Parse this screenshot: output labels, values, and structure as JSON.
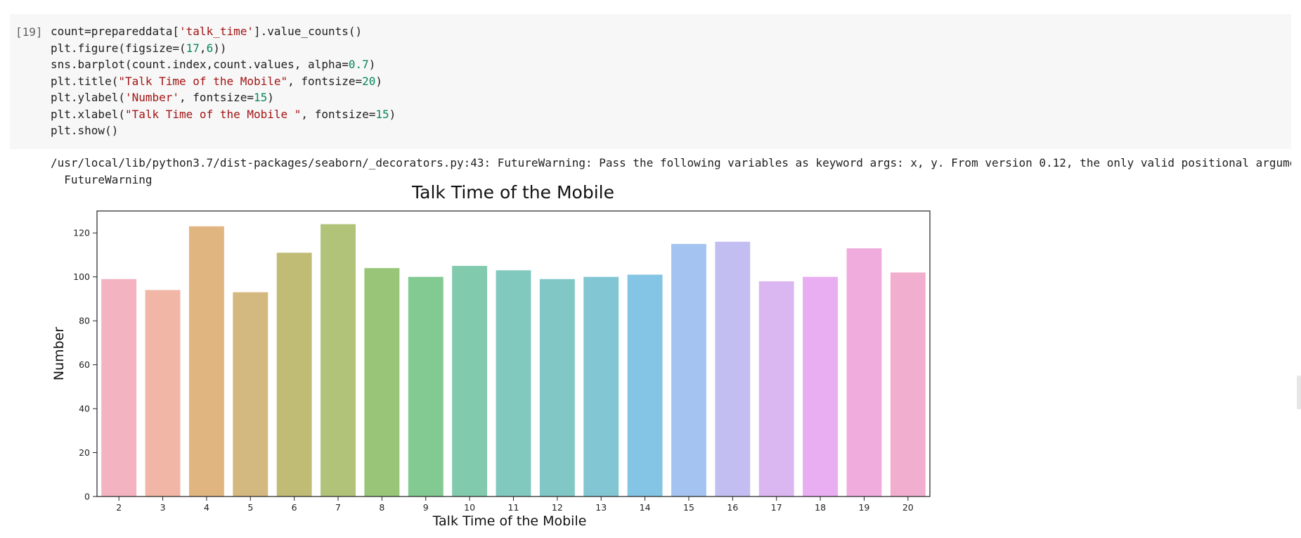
{
  "cell": {
    "execution_count": "[19]",
    "code_lines": [
      [
        {
          "t": "count=prepareddata["
        },
        {
          "t": "'talk_time'",
          "c": "str"
        },
        {
          "t": "].value_counts()"
        }
      ],
      [
        {
          "t": "plt.figure(figsize=("
        },
        {
          "t": "17",
          "c": "num"
        },
        {
          "t": ","
        },
        {
          "t": "6",
          "c": "num"
        },
        {
          "t": "))"
        }
      ],
      [
        {
          "t": "sns.barplot(count.index,count.values, alpha="
        },
        {
          "t": "0.7",
          "c": "num"
        },
        {
          "t": ")"
        }
      ],
      [
        {
          "t": "plt.title("
        },
        {
          "t": "\"Talk Time of the Mobile\"",
          "c": "str"
        },
        {
          "t": ", fontsize="
        },
        {
          "t": "20",
          "c": "num"
        },
        {
          "t": ")"
        }
      ],
      [
        {
          "t": "plt.ylabel("
        },
        {
          "t": "'Number'",
          "c": "str"
        },
        {
          "t": ", fontsize="
        },
        {
          "t": "15",
          "c": "num"
        },
        {
          "t": ")"
        }
      ],
      [
        {
          "t": "plt.xlabel("
        },
        {
          "t": "\"Talk Time of the Mobile \"",
          "c": "str"
        },
        {
          "t": ", fontsize="
        },
        {
          "t": "15",
          "c": "num"
        },
        {
          "t": ")"
        }
      ],
      [
        {
          "t": "plt.show()"
        }
      ]
    ],
    "warning_line1": "/usr/local/lib/python3.7/dist-packages/seaborn/_decorators.py:43: FutureWarning: Pass the following variables as keyword args: x, y. From version 0.12, the only valid positional argume",
    "warning_line2": "  FutureWarning"
  },
  "chart_data": {
    "type": "bar",
    "title": "Talk Time of the Mobile",
    "xlabel": "Talk Time of the Mobile",
    "ylabel": "Number",
    "categories": [
      "2",
      "3",
      "4",
      "5",
      "6",
      "7",
      "8",
      "9",
      "10",
      "11",
      "12",
      "13",
      "14",
      "15",
      "16",
      "17",
      "18",
      "19",
      "20"
    ],
    "values": [
      99,
      94,
      123,
      93,
      111,
      124,
      104,
      100,
      105,
      103,
      99,
      100,
      101,
      115,
      116,
      98,
      100,
      113,
      102
    ],
    "colors": [
      "#f1a6b5",
      "#eea996",
      "#dca86a",
      "#cbac68",
      "#b5b05e",
      "#a3b862",
      "#87bb62",
      "#6cbf7f",
      "#6cc19f",
      "#6bbfb4",
      "#6abdbc",
      "#6dbccb",
      "#6ebadf",
      "#94b9ed",
      "#b8b3ee",
      "#d3aaee",
      "#e59fee",
      "#ec9dd6",
      "#eea0c6"
    ],
    "alpha": 0.7,
    "ylim": [
      0,
      130
    ],
    "yticks": [
      0,
      20,
      40,
      60,
      80,
      100,
      120
    ],
    "grid": false
  }
}
